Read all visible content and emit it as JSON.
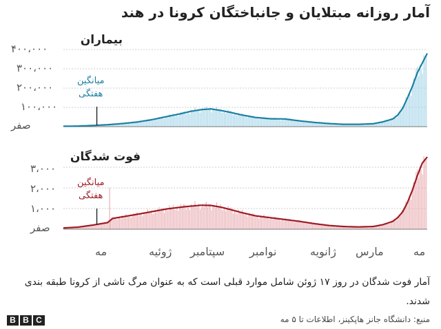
{
  "title": "آمار روزانه مبتلایان و جانباختگان کرونا در هند",
  "footnote": "آمار فوت شدگان در روز ۱۷ ژوئن شامل موارد قبلی است که به عنوان مرگ ناشی از کرونا طبقه بندی شدند.",
  "source": "منبع: دانشگاه جانز هاپکینز، اطلاعات تا ۵ مه",
  "bbc_logo": [
    "B",
    "B",
    "C"
  ],
  "colors": {
    "cases_line": "#1a7fa0",
    "cases_bar": "#a9d7ea",
    "deaths_line": "#9e1a24",
    "deaths_bar": "#eab1b6",
    "axis": "#333333"
  },
  "x_axis": {
    "labels": [
      "مه",
      "ژوئیه",
      "سپتامبر",
      "نوامبر",
      "ژانویه",
      "مارس",
      "مه"
    ],
    "domain_days": [
      0,
      370
    ]
  },
  "chart_data": [
    {
      "type": "area",
      "title": "بیماران",
      "ylim": [
        0,
        400000
      ],
      "yticks": [
        0,
        100000,
        200000,
        300000,
        400000
      ],
      "ytick_labels": [
        "صفر",
        "۱۰۰،۰۰۰",
        "۲۰۰،۰۰۰",
        "۳۰۰،۰۰۰",
        "۴۰۰،۰۰۰"
      ],
      "avg_label": [
        "میانگین",
        "هفتگی"
      ],
      "x": [
        0,
        15,
        30,
        45,
        60,
        75,
        90,
        105,
        120,
        130,
        140,
        150,
        160,
        170,
        180,
        195,
        210,
        225,
        240,
        255,
        270,
        285,
        300,
        315,
        325,
        335,
        340,
        345,
        350,
        355,
        360,
        365,
        370
      ],
      "values": [
        2000,
        3000,
        6000,
        10000,
        16000,
        24000,
        36000,
        52000,
        68000,
        80000,
        88000,
        92000,
        84000,
        74000,
        62000,
        48000,
        41000,
        40000,
        30000,
        22000,
        16000,
        12000,
        12000,
        15000,
        25000,
        40000,
        60000,
        95000,
        150000,
        210000,
        280000,
        330000,
        380000
      ]
    },
    {
      "type": "area",
      "title": "فوت شدگان",
      "ylim": [
        0,
        3500
      ],
      "yticks": [
        0,
        1000,
        2000,
        3000
      ],
      "ytick_labels": [
        "صفر",
        "۱،۰۰۰",
        "۲،۰۰۰",
        "۳،۰۰۰"
      ],
      "avg_label": [
        "میانگین",
        "هفتگی"
      ],
      "spike_note": {
        "x": 47,
        "value": 2000
      },
      "x": [
        0,
        15,
        30,
        45,
        50,
        60,
        75,
        90,
        105,
        120,
        130,
        140,
        150,
        160,
        170,
        180,
        195,
        210,
        225,
        240,
        255,
        270,
        285,
        300,
        315,
        325,
        335,
        340,
        345,
        350,
        355,
        360,
        365,
        370
      ],
      "values": [
        60,
        100,
        200,
        320,
        520,
        600,
        720,
        850,
        980,
        1070,
        1120,
        1160,
        1150,
        1070,
        950,
        820,
        650,
        560,
        470,
        380,
        270,
        180,
        130,
        110,
        130,
        220,
        380,
        560,
        840,
        1300,
        1900,
        2600,
        3200,
        3500
      ]
    }
  ]
}
